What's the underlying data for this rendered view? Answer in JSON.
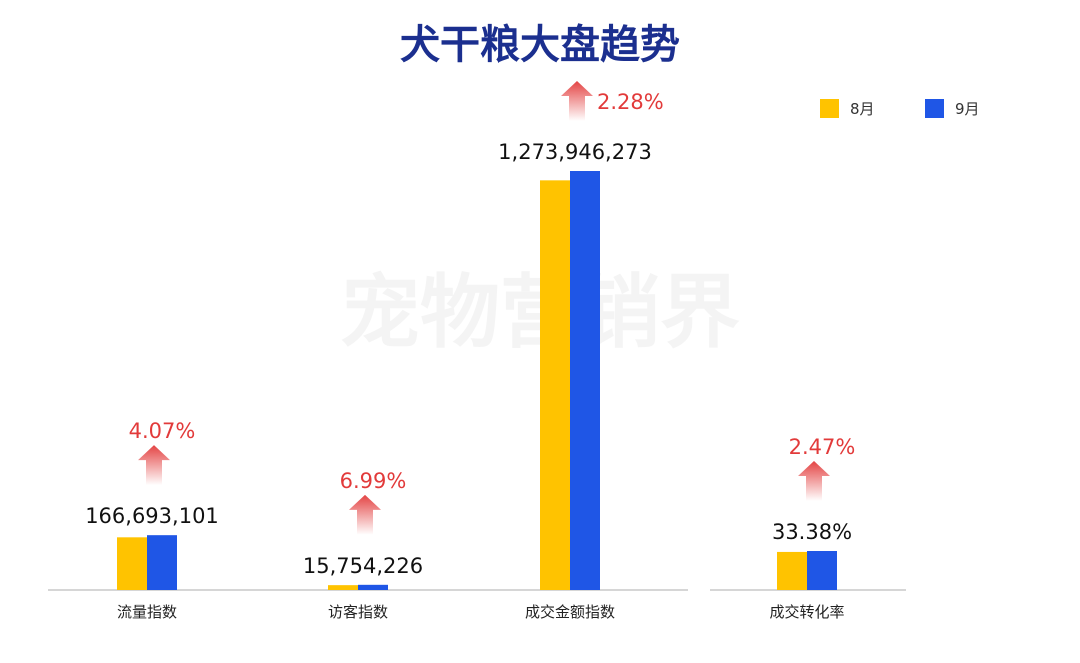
{
  "title": "犬干粮大盘趋势",
  "watermark": "宠物营销界",
  "legend": [
    {
      "name": "8月",
      "color": "#ffc300"
    },
    {
      "name": "9月",
      "color": "#1f56e6"
    }
  ],
  "change_color": "#e23a3a",
  "chart_data": [
    {
      "type": "bar",
      "categories": [
        "流量指数",
        "访客指数",
        "成交金额指数"
      ],
      "series": [
        {
          "name": "8月",
          "values": [
            160174000,
            14725000,
            1245550000
          ]
        },
        {
          "name": "9月",
          "values": [
            166693101,
            15754226,
            1273946273
          ]
        }
      ],
      "value_labels": [
        "166,693,101",
        "15,754,226",
        "1,273,946,273"
      ],
      "change_labels": [
        "4.07%",
        "6.99%",
        "2.28%"
      ],
      "ylim": [
        0,
        1400000000
      ]
    },
    {
      "type": "bar",
      "categories": [
        "成交转化率"
      ],
      "series": [
        {
          "name": "8月",
          "values": [
            32.58
          ]
        },
        {
          "name": "9月",
          "values": [
            33.38
          ]
        }
      ],
      "value_labels": [
        "33.38%"
      ],
      "change_labels": [
        "2.47%"
      ],
      "ylim": [
        0,
        100
      ]
    }
  ]
}
